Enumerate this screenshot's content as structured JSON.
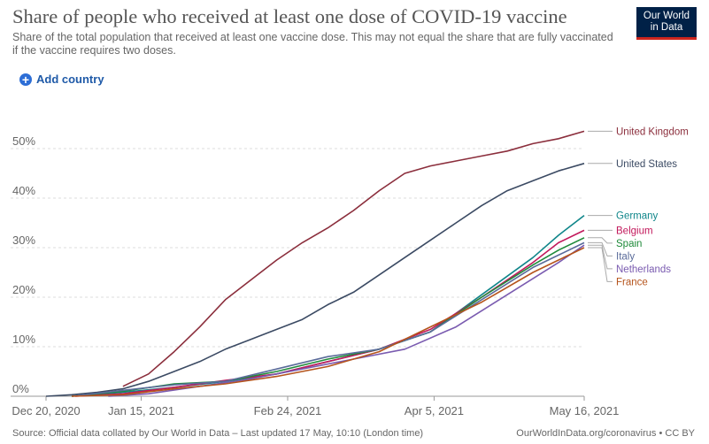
{
  "header": {
    "title": "Share of people who received at least one dose of COVID-19 vaccine",
    "subtitle": "Share of the total population that received at least one vaccine dose. This may not equal the share that are fully vaccinated if the vaccine requires two doses.",
    "logo_line1": "Our World",
    "logo_line2": "in Data"
  },
  "controls": {
    "add_country_label": "Add country"
  },
  "footer": {
    "source": "Source: Official data collated by Our World in Data – Last updated 17 May, 10:10 (London time)",
    "credit": "OurWorldInData.org/coronavirus • CC BY"
  },
  "colors": {
    "United Kingdom": "#8b2e3c",
    "United States": "#3b4a63",
    "Germany": "#10868a",
    "Belgium": "#c2185b",
    "Spain": "#1f8a3a",
    "Italy": "#5a6b9a",
    "Netherlands": "#7a5bb0",
    "France": "#b5541c"
  },
  "chart_data": {
    "type": "line",
    "xaxis_type": "date",
    "x_ticks": [
      "Dec 20, 2020",
      "Jan 15, 2021",
      "Feb 24, 2021",
      "Apr 5, 2021",
      "May 16, 2021"
    ],
    "x_tick_dates": [
      "2020-12-20",
      "2021-01-15",
      "2021-02-24",
      "2021-04-05",
      "2021-05-16"
    ],
    "ylim": [
      0,
      55
    ],
    "y_ticks": [
      0,
      10,
      20,
      30,
      40,
      50
    ],
    "y_tick_labels": [
      "0%",
      "10%",
      "20%",
      "30%",
      "40%",
      "50%"
    ],
    "grid": "horizontal dashed",
    "legend": "right, end-of-line labels",
    "series": [
      {
        "name": "United Kingdom",
        "x": [
          "2021-01-10",
          "2021-01-17",
          "2021-01-24",
          "2021-01-31",
          "2021-02-07",
          "2021-02-14",
          "2021-02-21",
          "2021-02-28",
          "2021-03-07",
          "2021-03-14",
          "2021-03-21",
          "2021-03-28",
          "2021-04-04",
          "2021-04-11",
          "2021-04-18",
          "2021-04-25",
          "2021-05-02",
          "2021-05-09",
          "2021-05-16"
        ],
        "y": [
          2.0,
          4.5,
          9.0,
          14.0,
          19.5,
          23.5,
          27.5,
          31.0,
          34.0,
          37.5,
          41.5,
          45.0,
          46.5,
          47.5,
          48.5,
          49.5,
          51.0,
          52.0,
          53.5
        ]
      },
      {
        "name": "United States",
        "x": [
          "2020-12-20",
          "2020-12-27",
          "2021-01-03",
          "2021-01-10",
          "2021-01-17",
          "2021-01-24",
          "2021-01-31",
          "2021-02-07",
          "2021-02-14",
          "2021-02-21",
          "2021-02-28",
          "2021-03-07",
          "2021-03-14",
          "2021-03-21",
          "2021-03-28",
          "2021-04-04",
          "2021-04-11",
          "2021-04-18",
          "2021-04-25",
          "2021-05-02",
          "2021-05-09",
          "2021-05-16"
        ],
        "y": [
          0.0,
          0.3,
          0.8,
          1.5,
          3.0,
          5.0,
          7.0,
          9.5,
          11.5,
          13.5,
          15.5,
          18.5,
          21.0,
          24.5,
          28.0,
          31.5,
          35.0,
          38.5,
          41.5,
          43.5,
          45.5,
          47.0
        ]
      },
      {
        "name": "Germany",
        "x": [
          "2020-12-27",
          "2021-01-10",
          "2021-01-24",
          "2021-02-07",
          "2021-02-21",
          "2021-03-07",
          "2021-03-21",
          "2021-04-04",
          "2021-04-18",
          "2021-05-02",
          "2021-05-09",
          "2021-05-16"
        ],
        "y": [
          0.0,
          0.8,
          1.8,
          3.0,
          4.5,
          7.0,
          9.5,
          13.0,
          20.5,
          28.0,
          32.5,
          36.5
        ]
      },
      {
        "name": "Belgium",
        "x": [
          "2020-12-28",
          "2021-01-10",
          "2021-01-24",
          "2021-02-07",
          "2021-02-21",
          "2021-03-07",
          "2021-03-21",
          "2021-04-04",
          "2021-04-18",
          "2021-05-02",
          "2021-05-09",
          "2021-05-16"
        ],
        "y": [
          0.0,
          0.5,
          1.8,
          3.2,
          4.5,
          7.0,
          9.5,
          13.5,
          20.0,
          27.0,
          31.0,
          33.5
        ]
      },
      {
        "name": "Spain",
        "x": [
          "2020-12-27",
          "2021-01-10",
          "2021-01-24",
          "2021-02-07",
          "2021-02-21",
          "2021-03-07",
          "2021-03-21",
          "2021-04-04",
          "2021-04-18",
          "2021-05-02",
          "2021-05-09",
          "2021-05-16"
        ],
        "y": [
          0.0,
          1.0,
          2.5,
          3.0,
          5.0,
          7.5,
          9.5,
          13.0,
          20.0,
          26.5,
          29.5,
          32.0
        ]
      },
      {
        "name": "Italy",
        "x": [
          "2020-12-27",
          "2021-01-10",
          "2021-01-24",
          "2021-02-07",
          "2021-02-21",
          "2021-03-07",
          "2021-03-21",
          "2021-04-04",
          "2021-04-18",
          "2021-05-02",
          "2021-05-09",
          "2021-05-16"
        ],
        "y": [
          0.0,
          1.2,
          2.3,
          3.0,
          5.5,
          8.0,
          9.5,
          13.0,
          19.5,
          26.0,
          28.5,
          31.0
        ]
      },
      {
        "name": "Netherlands",
        "x": [
          "2021-01-06",
          "2021-01-17",
          "2021-01-31",
          "2021-02-14",
          "2021-02-28",
          "2021-03-14",
          "2021-03-28",
          "2021-04-11",
          "2021-04-25",
          "2021-05-09",
          "2021-05-16"
        ],
        "y": [
          0.0,
          0.5,
          2.0,
          3.5,
          5.5,
          7.5,
          9.5,
          14.0,
          20.5,
          27.0,
          30.5
        ]
      },
      {
        "name": "France",
        "x": [
          "2020-12-27",
          "2021-01-10",
          "2021-01-24",
          "2021-02-07",
          "2021-02-21",
          "2021-03-07",
          "2021-03-21",
          "2021-04-04",
          "2021-04-18",
          "2021-05-02",
          "2021-05-09",
          "2021-05-16"
        ],
        "y": [
          0.0,
          0.3,
          1.5,
          2.5,
          4.0,
          6.0,
          9.0,
          14.0,
          19.0,
          25.0,
          27.5,
          30.0
        ]
      }
    ]
  }
}
